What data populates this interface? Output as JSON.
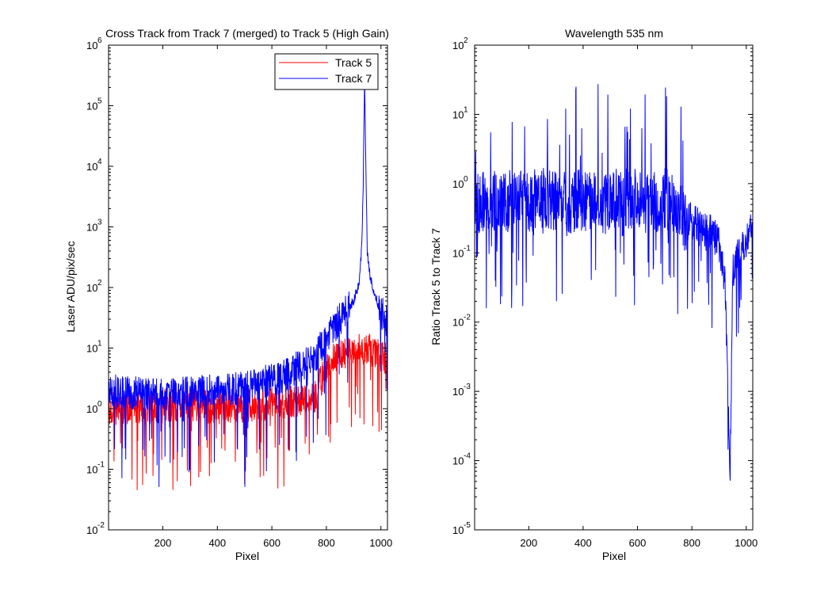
{
  "figure": {
    "background": "#ffffff"
  },
  "chart_data": [
    {
      "type": "line",
      "title": "Cross Track from Track 7 (merged) to Track 5 (High Gain)",
      "xlabel": "Pixel",
      "ylabel": "Laser ADU/pix/sec",
      "xlim": [
        1,
        1024
      ],
      "ylim": [
        0.01,
        1000000
      ],
      "yscale": "log",
      "xticks": [
        200,
        400,
        600,
        800,
        1000
      ],
      "yticks": [
        0.01,
        0.1,
        1,
        10,
        100,
        1000,
        10000,
        100000,
        1000000
      ],
      "ytick_exponents": [
        "-2",
        "-1",
        "0",
        "1",
        "2",
        "3",
        "4",
        "5",
        "6"
      ],
      "ytick_base": "10",
      "grid": false,
      "legend_position": "top-right",
      "series": [
        {
          "name": "Track 5",
          "color": "#ff0000",
          "x": [
            1,
            100,
            200,
            300,
            400,
            500,
            600,
            700,
            760,
            800,
            850,
            900,
            950,
            1000,
            1024
          ],
          "y": [
            1.0,
            1.0,
            1.1,
            1.2,
            1.0,
            1.1,
            1.2,
            1.4,
            1.6,
            5.0,
            8.0,
            9.0,
            10.0,
            8.0,
            6.0
          ]
        },
        {
          "name": "Track 7",
          "color": "#0000ff",
          "x": [
            1,
            100,
            200,
            300,
            400,
            500,
            600,
            650,
            700,
            750,
            800,
            850,
            900,
            920,
            930,
            935,
            940,
            945,
            950,
            960,
            980,
            1000,
            1024
          ],
          "y": [
            2.0,
            1.8,
            1.7,
            1.8,
            2.0,
            2.2,
            3.0,
            3.5,
            5.0,
            6.0,
            15.0,
            30.0,
            60.0,
            120.0,
            500.0,
            5000.0,
            300000.0,
            8000.0,
            400.0,
            150.0,
            70.0,
            40.0,
            28.0
          ]
        }
      ]
    },
    {
      "type": "line",
      "title": "Wavelength 535 nm",
      "xlabel": "Pixel",
      "ylabel": "Ratio Track 5 to Track 7",
      "xlim": [
        1,
        1024
      ],
      "ylim": [
        1e-05,
        100
      ],
      "yscale": "log",
      "xticks": [
        200,
        400,
        600,
        800,
        1000
      ],
      "yticks": [
        1e-05,
        0.0001,
        0.001,
        0.01,
        0.1,
        1,
        10,
        100
      ],
      "ytick_exponents": [
        "-5",
        "-4",
        "-3",
        "-2",
        "-1",
        "0",
        "1",
        "2"
      ],
      "ytick_base": "10",
      "grid": false,
      "series": [
        {
          "color": "#0000ff",
          "x": [
            1,
            50,
            100,
            150,
            200,
            250,
            300,
            350,
            400,
            450,
            500,
            550,
            600,
            650,
            700,
            750,
            780,
            800,
            850,
            880,
            900,
            920,
            935,
            940,
            945,
            950,
            960,
            980,
            1000,
            1024
          ],
          "y": [
            0.5,
            0.6,
            0.5,
            0.6,
            0.55,
            0.6,
            0.6,
            0.5,
            0.6,
            0.5,
            0.5,
            0.6,
            0.6,
            0.5,
            0.6,
            0.5,
            0.25,
            0.3,
            0.2,
            0.2,
            0.12,
            0.05,
            0.0008,
            5e-05,
            0.001,
            0.05,
            0.08,
            0.12,
            0.15,
            0.25
          ]
        }
      ]
    }
  ]
}
